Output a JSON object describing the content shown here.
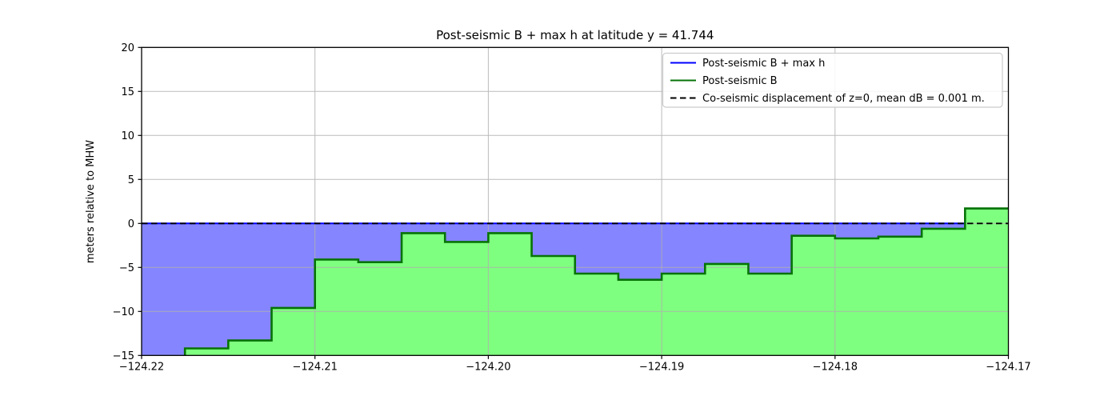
{
  "chart_data": {
    "type": "area",
    "title": "Post-seismic B + max h at latitude y = 41.744",
    "xlabel": "",
    "ylabel": "meters relative to MHW",
    "xlim": [
      -124.22,
      -124.17
    ],
    "ylim": [
      -15,
      20
    ],
    "grid": true,
    "xticks": [
      -124.22,
      -124.21,
      -124.2,
      -124.19,
      -124.18,
      -124.17
    ],
    "xtick_labels": [
      "−124.22",
      "−124.21",
      "−124.20",
      "−124.19",
      "−124.18",
      "−124.17"
    ],
    "yticks": [
      20,
      15,
      10,
      5,
      0,
      -5,
      -10,
      -15
    ],
    "ytick_labels": [
      "20",
      "15",
      "10",
      "5",
      "0",
      "−5",
      "−10",
      "−15"
    ],
    "steps": {
      "x_edges": [
        -124.22,
        -124.2175,
        -124.215,
        -124.2125,
        -124.21,
        -124.2075,
        -124.205,
        -124.2025,
        -124.2,
        -124.1975,
        -124.195,
        -124.1925,
        -124.19,
        -124.1875,
        -124.185,
        -124.1825,
        -124.18,
        -124.1775,
        -124.175,
        -124.1725,
        -124.17
      ],
      "post_seismic_B": [
        -15.6,
        -14.2,
        -13.3,
        -9.6,
        -4.1,
        -4.4,
        -1.1,
        -2.1,
        -1.1,
        -3.7,
        -5.7,
        -6.4,
        -5.7,
        -4.6,
        -5.7,
        -1.4,
        -1.7,
        -1.5,
        -0.6,
        1.7
      ],
      "B_plus_max_h": [
        0,
        0,
        0,
        0,
        0,
        0,
        0,
        0,
        0,
        0,
        0,
        0,
        0,
        0,
        0,
        0,
        0,
        0,
        0,
        1.7
      ]
    },
    "dashed_line": {
      "value": 0.001
    },
    "colors": {
      "b_plus_maxh_line": "#0000ff",
      "b_line": "#067306",
      "water_fill": "rgba(0,0,255,0.48)",
      "land_fill": "rgba(0,255,0,0.5)",
      "dashed_line": "#000000",
      "grid": "#b0b0b0",
      "spine": "#000000",
      "legend_border": "#cccccc"
    },
    "legend": {
      "position": "upper-right",
      "entries": [
        {
          "label": "Post-seismic B + max h",
          "color": "#0000ff",
          "style": "solid"
        },
        {
          "label": "Post-seismic B",
          "color": "#067306",
          "style": "solid"
        },
        {
          "label": "Co-seismic displacement of z=0, mean dB = 0.001 m.",
          "color": "#000000",
          "style": "dashed"
        }
      ]
    }
  }
}
